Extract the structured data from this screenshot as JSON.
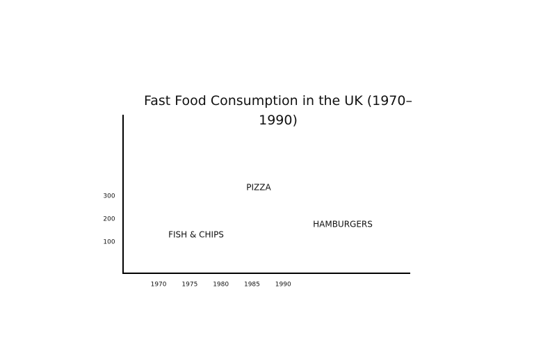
{
  "chart_data": {
    "type": "annotated-axes",
    "title": "Fast Food Consumption in the UK (1970–1990)",
    "annotations": [
      "PIZZA",
      "FISH & CHIPS",
      "HAMBURGERS"
    ],
    "xlim": [
      1964.3,
      2010.4
    ],
    "xticks": [
      1970,
      1975,
      1980,
      1985,
      1990
    ],
    "ylim": [
      -36,
      655
    ],
    "yticks": [
      100,
      200,
      300
    ]
  }
}
